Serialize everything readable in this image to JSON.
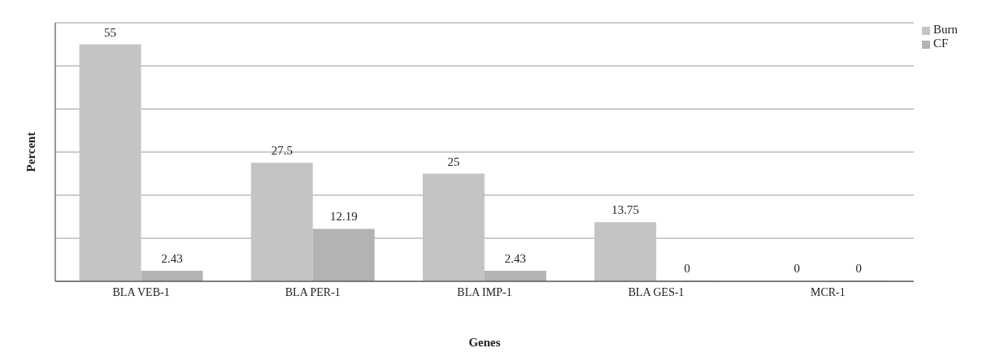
{
  "chart_data": {
    "type": "bar",
    "xlabel": "Genes",
    "ylabel": "Percent",
    "categories": [
      "BLA VEB-1",
      "BLA PER-1",
      "BLA IMP-1",
      "BLA GES-1",
      "MCR-1"
    ],
    "series": [
      {
        "name": "Burn",
        "color": "#c4c4c4",
        "values": [
          55,
          27.5,
          25,
          13.75,
          0
        ]
      },
      {
        "name": "CF",
        "color": "#b3b3b3",
        "values": [
          2.43,
          12.19,
          2.43,
          0,
          0
        ]
      }
    ],
    "data_labels": true,
    "grid": "y",
    "legend": "top right",
    "tick_labels": "x"
  }
}
